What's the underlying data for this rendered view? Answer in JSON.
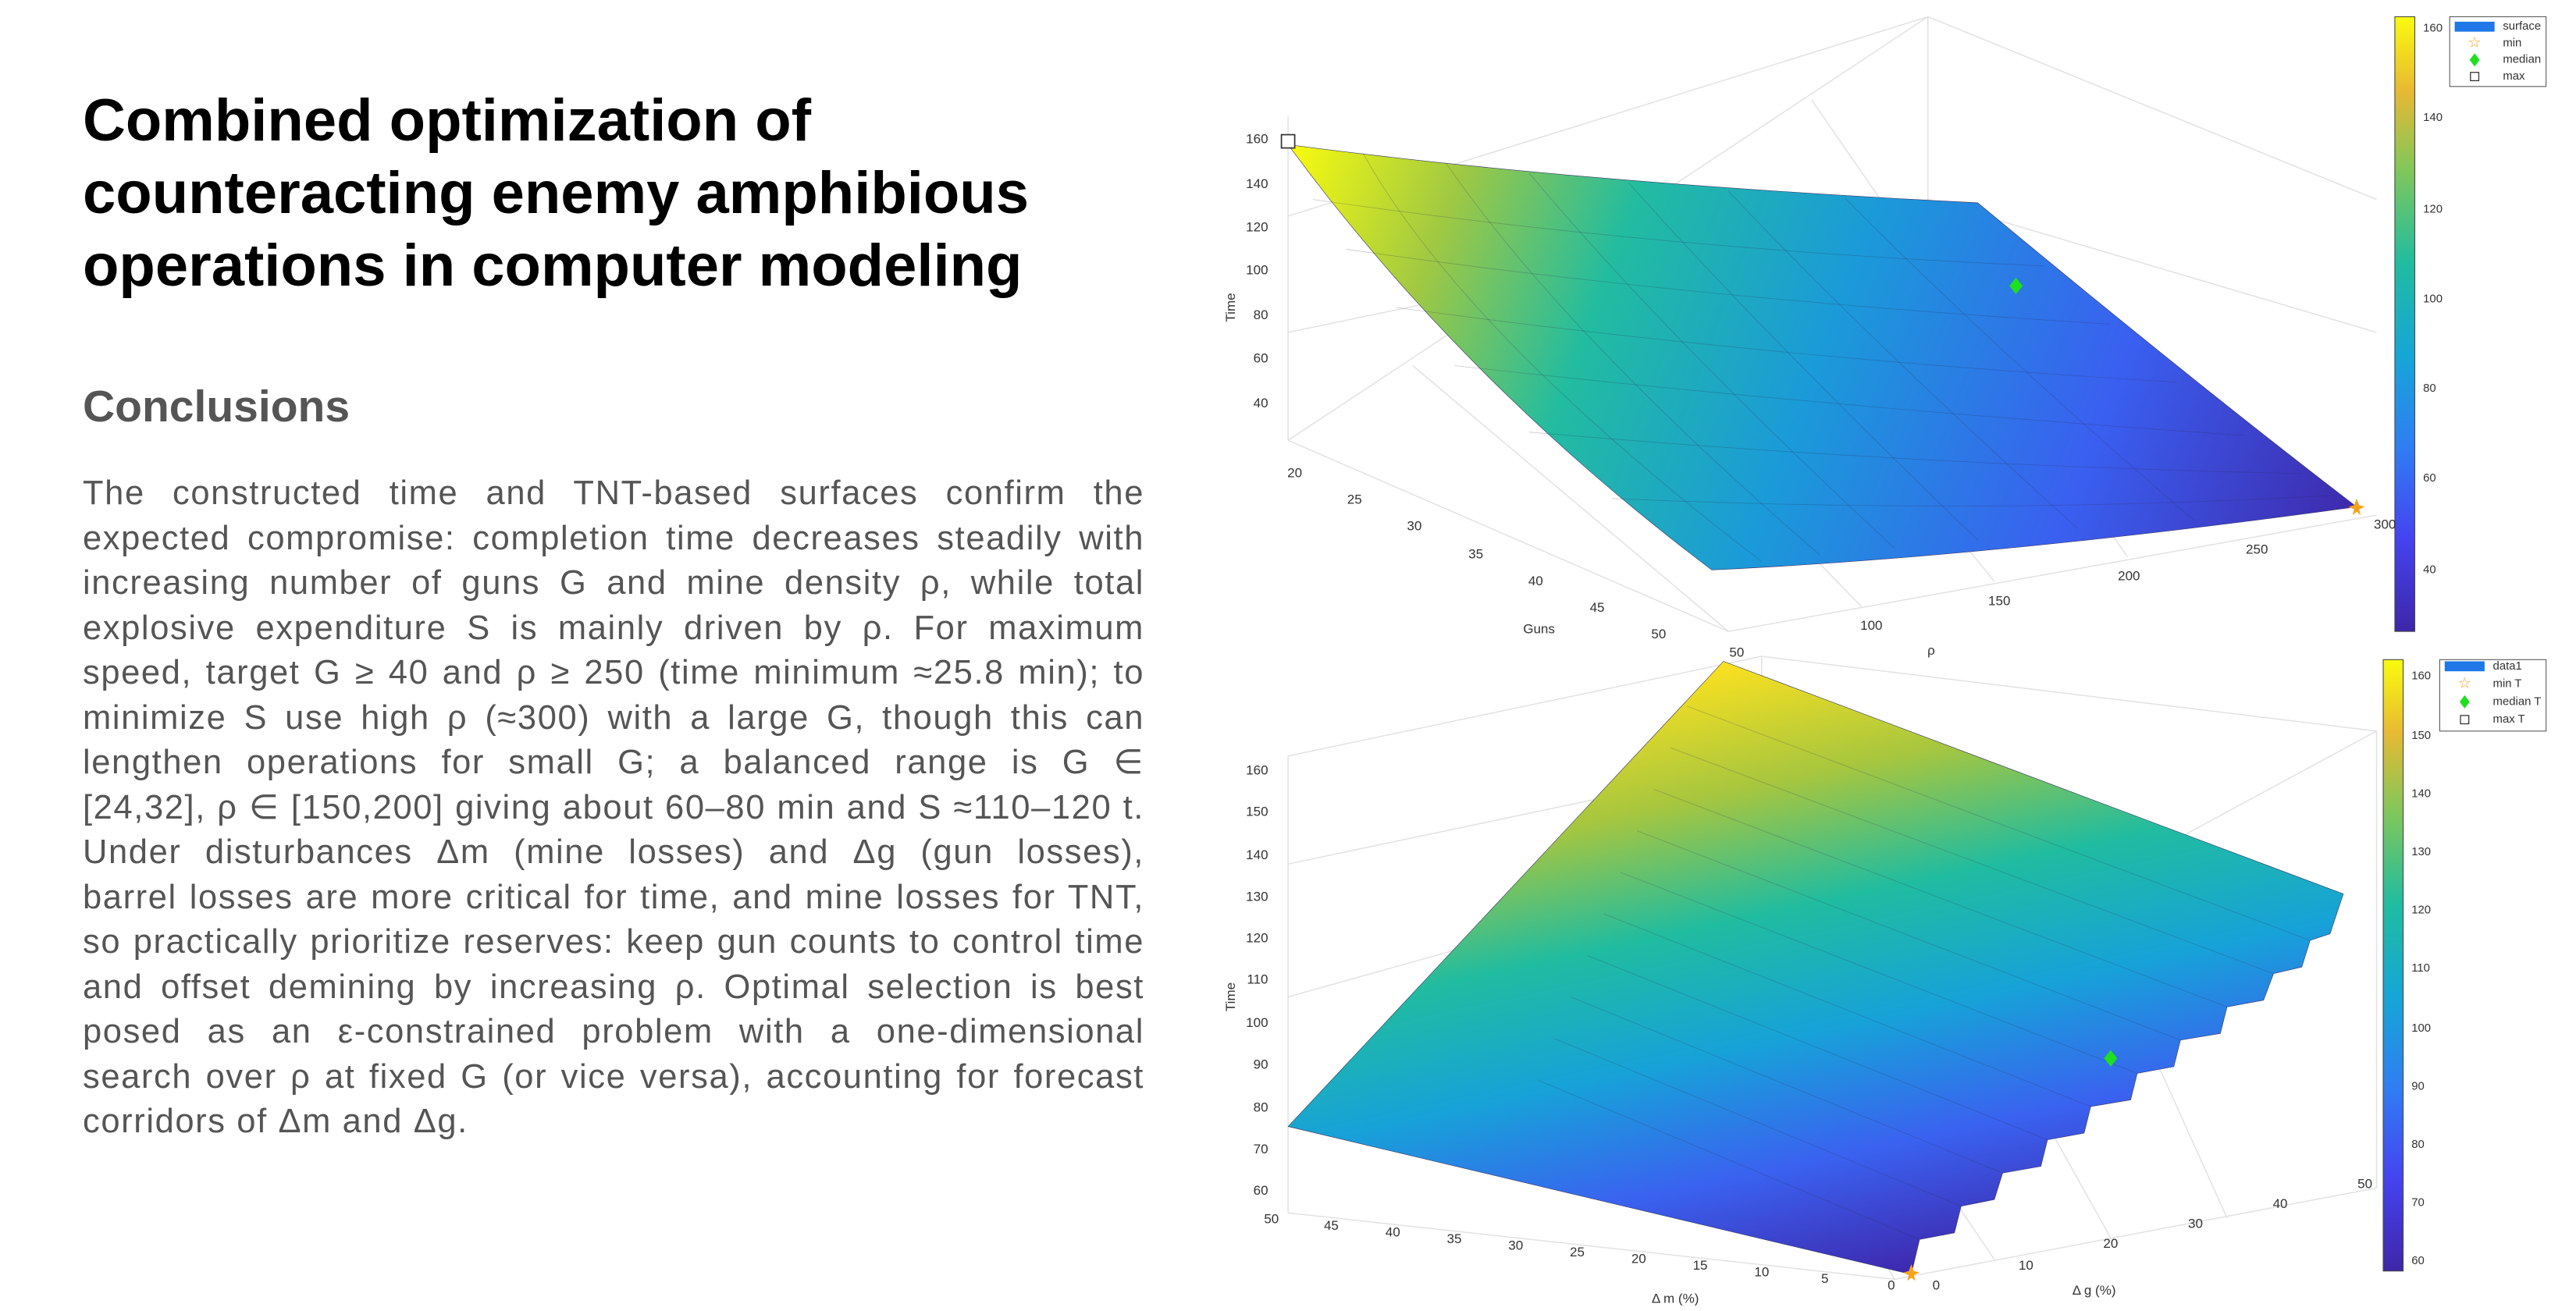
{
  "title": "Combined optimization of counteracting enemy amphibious operations in computer modeling",
  "section_heading": "Conclusions",
  "body": "The constructed time and TNT-based surfaces confirm the expected compromise: completion time decreases steadily with increasing number of guns G and mine density ρ, while total explosive expenditure S is mainly driven by ρ. For maximum speed, target G ≥ 40 and ρ ≥ 250 (time minimum ≈25.8 min); to minimize S use high ρ (≈300) with a large G, though this can lengthen operations for small G; a balanced range is G ∈ [24,32], ρ ∈ [150,200] giving about 60–80 min and S ≈110–120 t. Under disturbances Δm (mine losses) and Δg (gun losses), barrel losses are more critical for time, and mine losses for TNT, so practically prioritize reserves: keep gun counts to control time and offset demining by increasing ρ. Optimal selection is best posed as an ε-constrained problem with a one-dimensional search over ρ at fixed G (or vice versa), accounting for forecast corridors of Δm and Δg.",
  "figures": [
    {
      "z_label": "Time",
      "z_ticks": [
        160,
        140,
        120,
        100,
        80,
        60,
        40
      ],
      "x_label": "Guns",
      "x_ticks": [
        20,
        25,
        30,
        35,
        40,
        45,
        50
      ],
      "y_label": "ρ",
      "y_ticks": [
        50,
        100,
        150,
        200,
        250,
        300
      ],
      "colorbar_ticks": [
        160,
        140,
        120,
        100,
        80,
        60,
        40
      ],
      "legend": [
        "surface",
        "min",
        "median",
        "max"
      ]
    },
    {
      "z_label": "Time",
      "z_ticks": [
        160,
        150,
        140,
        130,
        120,
        110,
        100,
        90,
        80,
        70,
        60
      ],
      "x_label": "Δ m  (%)",
      "x_ticks": [
        50,
        45,
        40,
        35,
        30,
        25,
        20,
        15,
        10,
        5,
        0
      ],
      "y_label": "Δ g  (%)",
      "y_ticks": [
        0,
        10,
        20,
        30,
        40,
        50
      ],
      "colorbar_ticks": [
        160,
        150,
        140,
        130,
        120,
        110,
        100,
        90,
        80,
        70,
        60
      ],
      "legend": [
        "data1",
        "min T",
        "median T",
        "max T"
      ]
    }
  ]
}
